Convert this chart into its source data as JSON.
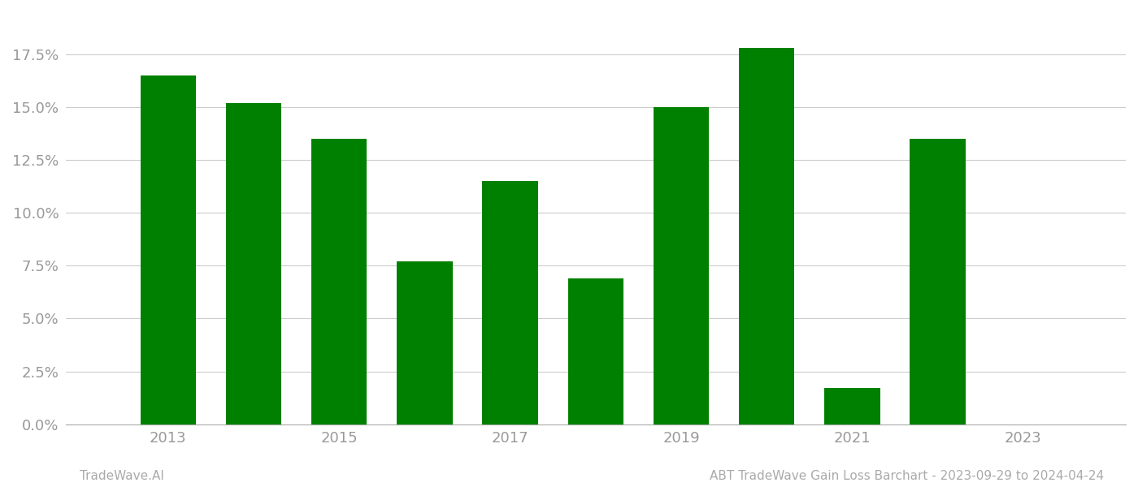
{
  "years": [
    2013,
    2014,
    2015,
    2016,
    2017,
    2018,
    2019,
    2020,
    2021,
    2022,
    2023
  ],
  "values": [
    0.165,
    0.152,
    0.135,
    0.077,
    0.115,
    0.069,
    0.15,
    0.178,
    0.017,
    0.135,
    0.0
  ],
  "bar_color": "#008000",
  "background_color": "#ffffff",
  "grid_color": "#cccccc",
  "axis_color": "#aaaaaa",
  "tick_color": "#999999",
  "ylim": [
    0,
    0.195
  ],
  "yticks": [
    0.0,
    0.025,
    0.05,
    0.075,
    0.1,
    0.125,
    0.15,
    0.175
  ],
  "xtick_labels": [
    "2013",
    "2015",
    "2017",
    "2019",
    "2021",
    "2023"
  ],
  "xtick_positions": [
    2013,
    2015,
    2017,
    2019,
    2021,
    2023
  ],
  "xlim_left": 2011.8,
  "xlim_right": 2024.2,
  "footer_left": "TradeWave.AI",
  "footer_right": "ABT TradeWave Gain Loss Barchart - 2023-09-29 to 2024-04-24",
  "footer_color": "#aaaaaa",
  "bar_width": 0.65,
  "tick_fontsize": 13
}
